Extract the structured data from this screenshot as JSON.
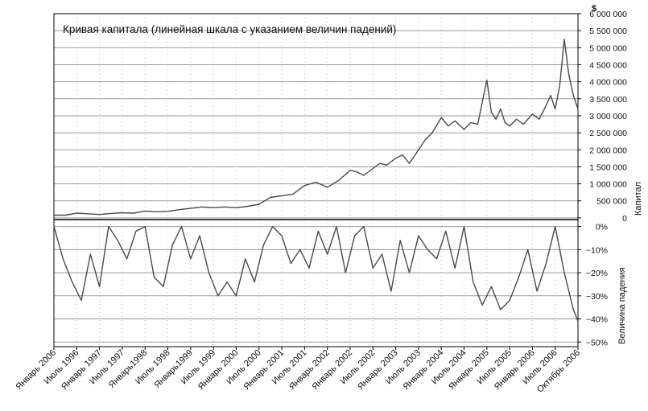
{
  "chart_data": {
    "type": "line",
    "title": "Кривая капитала (линейная шкала с указанием величин падений)",
    "x_categories": [
      "Январь 2006",
      "Июль 1996",
      "Январь 1997",
      "Июль 1997",
      "Январь1998",
      "Июль 1998",
      "Январь1999",
      "Июль 1999",
      "Январь 2000",
      "Июль 2000",
      "Январь 2001",
      "Июль 2001",
      "Январь 2002",
      "Январь 2002",
      "Июль 2002",
      "Январь 2003",
      "Июль 2003",
      "Январь 2004",
      "Июль 2004",
      "Январь 2005",
      "Июль 2005",
      "Январь 2006",
      "Июль 2006",
      "Октябрь 2006"
    ],
    "top_panel": {
      "ylabel": "Капитал",
      "unit": "$",
      "ylim": [
        -50000,
        6000000
      ],
      "yticks": [
        0,
        500000,
        1000000,
        1500000,
        2000000,
        2500000,
        3000000,
        3500000,
        4000000,
        4500000,
        5000000,
        5500000,
        6000000
      ],
      "ytick_labels": [
        "0",
        "500 000",
        "1 000 000",
        "1 500 000",
        "2 000 000",
        "2 500 000",
        "3 000 000",
        "3 500 000",
        "4 000 000",
        "4 500 000",
        "5 000 000",
        "5 500 000",
        "6 000 000"
      ],
      "series": [
        {
          "x": [
            0,
            0.5,
            1,
            1.5,
            2,
            2.5,
            3,
            3.5,
            4,
            4.5,
            5,
            5.5,
            6,
            6.5,
            7,
            7.5,
            8,
            8.5,
            9,
            9.5,
            10,
            10.5,
            11,
            11.5,
            12,
            12.5,
            13,
            13.3,
            13.6,
            14,
            14.3,
            14.6,
            15,
            15.3,
            15.6,
            16,
            16.3,
            16.6,
            17,
            17.3,
            17.6,
            18,
            18.3,
            18.6,
            19,
            19.2,
            19.4,
            19.6,
            19.8,
            20,
            20.3,
            20.6,
            21,
            21.3,
            21.6,
            21.8,
            22,
            22.2,
            22.4,
            22.6,
            22.8,
            23
          ],
          "values": [
            80000,
            80000,
            140000,
            120000,
            100000,
            130000,
            150000,
            140000,
            200000,
            180000,
            190000,
            240000,
            280000,
            320000,
            300000,
            320000,
            300000,
            340000,
            400000,
            600000,
            650000,
            700000,
            950000,
            1050000,
            900000,
            1100000,
            1400000,
            1350000,
            1250000,
            1450000,
            1600000,
            1550000,
            1750000,
            1850000,
            1600000,
            2000000,
            2300000,
            2500000,
            2950000,
            2700000,
            2850000,
            2600000,
            2800000,
            2750000,
            4050000,
            3100000,
            2900000,
            3200000,
            2800000,
            2700000,
            2900000,
            2750000,
            3050000,
            2900000,
            3300000,
            3600000,
            3200000,
            3900000,
            5250000,
            4200000,
            3600000,
            3200000
          ]
        }
      ]
    },
    "bottom_panel": {
      "ylabel": "Величина падения",
      "ylim": [
        -52,
        3
      ],
      "yticks": [
        0,
        -10,
        -20,
        -30,
        -40,
        -50
      ],
      "ytick_labels": [
        "0%",
        "−10%",
        "−20%",
        "−30%",
        "−40%",
        "−50%"
      ],
      "series": [
        {
          "x": [
            0,
            0.4,
            0.8,
            1.2,
            1.6,
            2,
            2.4,
            2.8,
            3.2,
            3.6,
            4,
            4.4,
            4.8,
            5.2,
            5.6,
            6,
            6.4,
            6.8,
            7.2,
            7.6,
            8,
            8.4,
            8.8,
            9.2,
            9.6,
            10,
            10.4,
            10.8,
            11.2,
            11.6,
            12,
            12.4,
            12.8,
            13.2,
            13.6,
            14,
            14.4,
            14.8,
            15.2,
            15.6,
            16,
            16.4,
            16.8,
            17.2,
            17.6,
            18,
            18.4,
            18.8,
            19.2,
            19.6,
            20,
            20.4,
            20.8,
            21.2,
            21.6,
            22,
            22.4,
            22.8,
            23
          ],
          "values": [
            0,
            -14,
            -24,
            -32,
            -12,
            -26,
            0,
            -6,
            -14,
            -2,
            0,
            -22,
            -26,
            -8,
            0,
            -14,
            -4,
            -20,
            -30,
            -24,
            -30,
            -14,
            -24,
            -8,
            0,
            -4,
            -16,
            -10,
            -18,
            -2,
            -12,
            0,
            -20,
            -4,
            0,
            -18,
            -12,
            -28,
            -6,
            -20,
            -4,
            -10,
            -14,
            -2,
            -18,
            0,
            -24,
            -34,
            -26,
            -36,
            -32,
            -22,
            -10,
            -28,
            -16,
            0,
            -20,
            -36,
            -41
          ]
        }
      ]
    }
  }
}
